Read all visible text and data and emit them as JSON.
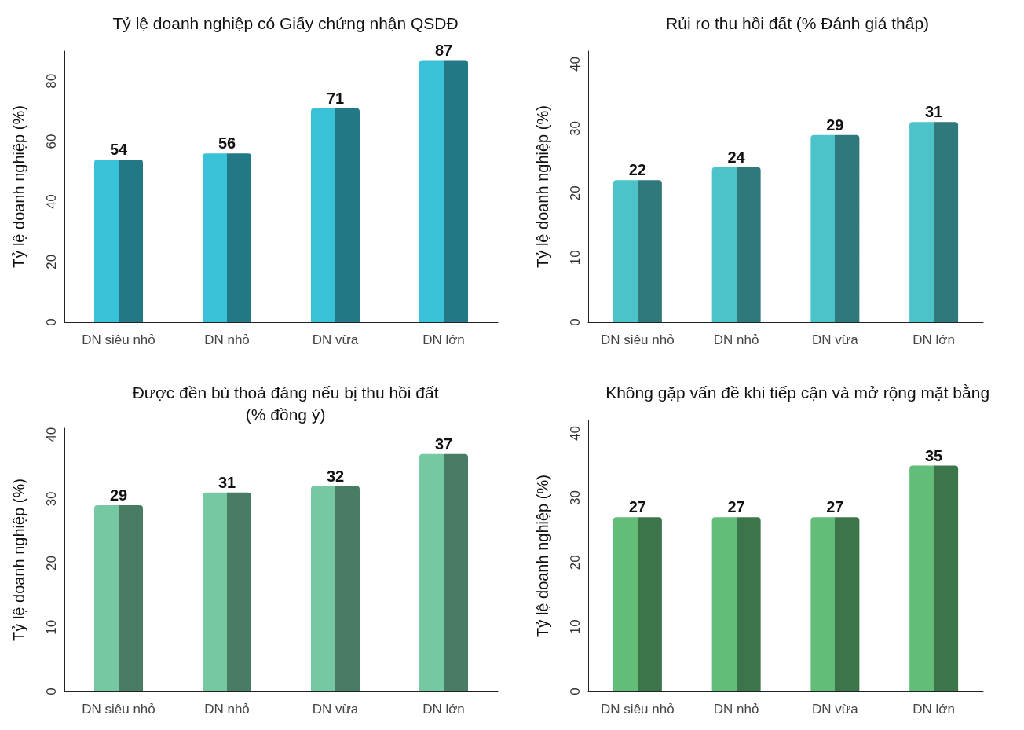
{
  "chart_data": [
    {
      "type": "bar",
      "title": "Tỷ lệ doanh nghiệp có Giấy chứng nhận QSDĐ",
      "ylabel": "Tỷ lệ doanh nghiệp (%)",
      "categories": [
        "DN siêu nhỏ",
        "DN nhỏ",
        "DN vừa",
        "DN lớn"
      ],
      "values": [
        54,
        56,
        71,
        87
      ],
      "color": "#38c1d8",
      "ylim": [
        0,
        90
      ],
      "yticks": [
        0,
        20,
        40,
        60,
        80
      ],
      "data_labels": true
    },
    {
      "type": "bar",
      "title": "Rủi ro thu hồi đất (% Đánh giá thấp)",
      "ylabel": "Tỷ lệ doanh nghiệp (%)",
      "categories": [
        "DN siêu nhỏ",
        "DN nhỏ",
        "DN vừa",
        "DN lớn"
      ],
      "values": [
        22,
        24,
        29,
        31
      ],
      "color": "#4bc3c8",
      "ylim": [
        0,
        42
      ],
      "yticks": [
        0,
        10,
        20,
        30,
        40
      ],
      "data_labels": true
    },
    {
      "type": "bar",
      "title": "Được đền bù thoả đáng nếu bị thu hồi đất\n(% đồng ý)",
      "ylabel": "Tỷ lệ doanh nghiệp (%)",
      "categories": [
        "DN siêu nhỏ",
        "DN nhỏ",
        "DN vừa",
        "DN lớn"
      ],
      "values": [
        29,
        31,
        32,
        37
      ],
      "color": "#76c8a2",
      "ylim": [
        0,
        41
      ],
      "yticks": [
        0,
        10,
        20,
        30,
        40
      ],
      "data_labels": true
    },
    {
      "type": "bar",
      "title": "Không gặp vấn đề khi tiếp cận và mở rộng mặt bằng",
      "ylabel": "Tỷ lệ doanh nghiệp (%)",
      "categories": [
        "DN siêu nhỏ",
        "DN nhỏ",
        "DN vừa",
        "DN lớn"
      ],
      "values": [
        27,
        27,
        27,
        35
      ],
      "color": "#62bd78",
      "ylim": [
        0,
        42
      ],
      "yticks": [
        0,
        10,
        20,
        30,
        40
      ],
      "data_labels": true
    }
  ]
}
